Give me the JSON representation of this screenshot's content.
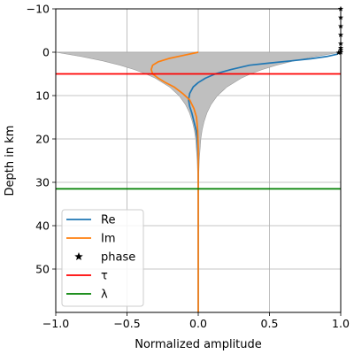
{
  "chart_data": {
    "type": "line",
    "title": "",
    "xlabel": "Normalized amplitude",
    "ylabel": "Depth in km",
    "xlim": [
      -1.0,
      1.0
    ],
    "ylim": [
      60,
      -10
    ],
    "y_inverted": true,
    "grid": true,
    "legend_placement": "lower-left",
    "x_ticks": [
      -1.0,
      -0.5,
      0.0,
      0.5,
      1.0
    ],
    "x_tick_labels": [
      "−1.0",
      "−0.5",
      "0.0",
      "0.5",
      "1.0"
    ],
    "y_ticks": [
      -10,
      0,
      10,
      20,
      30,
      40,
      50
    ],
    "y_tick_labels": [
      "−10",
      "0",
      "10",
      "20",
      "30",
      "40",
      "50"
    ],
    "envelope": {
      "color": "#bfbfbf",
      "depth": [
        0,
        1,
        2,
        3,
        4,
        5,
        6,
        8,
        10,
        12,
        14,
        16,
        18,
        20,
        25,
        30,
        35,
        40,
        50,
        60
      ],
      "half_width": [
        1.0,
        0.818,
        0.67,
        0.548,
        0.449,
        0.368,
        0.301,
        0.202,
        0.135,
        0.091,
        0.061,
        0.041,
        0.027,
        0.018,
        0.007,
        0.002,
        0.001,
        0.0,
        0.0,
        0.0
      ]
    },
    "series": [
      {
        "name": "Re",
        "color": "#1f77b4",
        "x": [
          1.0,
          0.97,
          0.9,
          0.79,
          0.65,
          0.5,
          0.36,
          0.23,
          0.12,
          0.05,
          0.0,
          -0.035,
          -0.06,
          -0.068,
          -0.06,
          -0.045,
          -0.03,
          -0.015,
          -0.007,
          -0.002,
          0.0,
          0.0,
          0.0,
          0.0
        ],
        "y": [
          0,
          0.5,
          1,
          1.5,
          2,
          2.5,
          3,
          4,
          5,
          6,
          7,
          8,
          9.5,
          11,
          12.5,
          14,
          16,
          18,
          20,
          23,
          26,
          30,
          40,
          60
        ]
      },
      {
        "name": "Im",
        "color": "#ff7f0e",
        "x": [
          0.0,
          -0.1,
          -0.2,
          -0.28,
          -0.32,
          -0.33,
          -0.32,
          -0.28,
          -0.23,
          -0.17,
          -0.11,
          -0.06,
          -0.03,
          -0.012,
          -0.004,
          0.0,
          0.0,
          0.0
        ],
        "y": [
          0,
          0.7,
          1.4,
          2.2,
          3.0,
          4.0,
          5.0,
          6.0,
          7.0,
          8.0,
          9.5,
          11.0,
          13.0,
          15.0,
          18.0,
          22.0,
          40.0,
          60.0
        ]
      }
    ],
    "phase": {
      "name": "phase",
      "marker": "star",
      "color": "#000000",
      "points": [
        {
          "x": 1.0,
          "y": -10.0
        },
        {
          "x": 1.0,
          "y": -8.0
        },
        {
          "x": 1.0,
          "y": -6.0
        },
        {
          "x": 1.0,
          "y": -4.0
        },
        {
          "x": 1.0,
          "y": -2.0
        },
        {
          "x": 1.0,
          "y": -1.0
        },
        {
          "x": 1.0,
          "y": -0.5
        },
        {
          "x": 1.0,
          "y": 0.0
        },
        {
          "x": 0.985,
          "y": 0.1
        }
      ]
    },
    "hlines": [
      {
        "name": "τ",
        "color": "#ff0000",
        "y": 5.0
      },
      {
        "name": "λ",
        "color": "#008000",
        "y": 31.5
      }
    ],
    "legend": [
      {
        "label": "Re",
        "kind": "line",
        "color": "#1f77b4"
      },
      {
        "label": "Im",
        "kind": "line",
        "color": "#ff7f0e"
      },
      {
        "label": "phase",
        "kind": "star",
        "color": "#000000"
      },
      {
        "label": "τ",
        "kind": "line",
        "color": "#ff0000"
      },
      {
        "label": "λ",
        "kind": "line",
        "color": "#008000"
      }
    ]
  }
}
